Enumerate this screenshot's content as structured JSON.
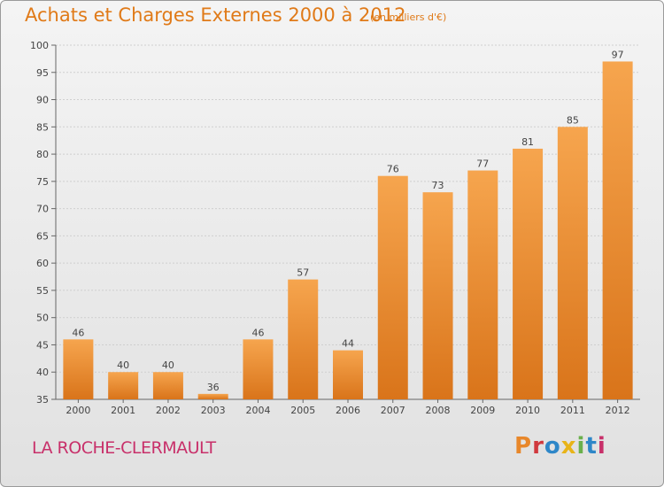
{
  "header": {
    "title": "Achats et Charges Externes 2000 à 2012",
    "subtitle": "(en milliers d'€)"
  },
  "footer": {
    "place": "LA ROCHE-CLERMAULT",
    "brand": [
      "P",
      "r",
      "o",
      "x",
      "i",
      "t",
      "i"
    ],
    "brand_colors": [
      "#e8872a",
      "#d0393e",
      "#2e87c8",
      "#e8b419",
      "#6ab04c",
      "#2e87c8",
      "#c8306a"
    ]
  },
  "colors": {
    "bar_top": "#f6a54e",
    "bar_bottom": "#d9741a",
    "axis": "#666666",
    "grid": "#cfcfcf",
    "title": "#e07a18"
  },
  "chart_data": {
    "type": "bar",
    "categories": [
      "2000",
      "2001",
      "2002",
      "2003",
      "2004",
      "2005",
      "2006",
      "2007",
      "2008",
      "2009",
      "2010",
      "2011",
      "2012"
    ],
    "values": [
      46,
      40,
      40,
      36,
      46,
      57,
      44,
      76,
      73,
      77,
      81,
      85,
      97
    ],
    "ylim": [
      35,
      100
    ],
    "yticks": [
      35,
      40,
      45,
      50,
      55,
      60,
      65,
      70,
      75,
      80,
      85,
      90,
      95,
      100
    ],
    "grid": true
  }
}
